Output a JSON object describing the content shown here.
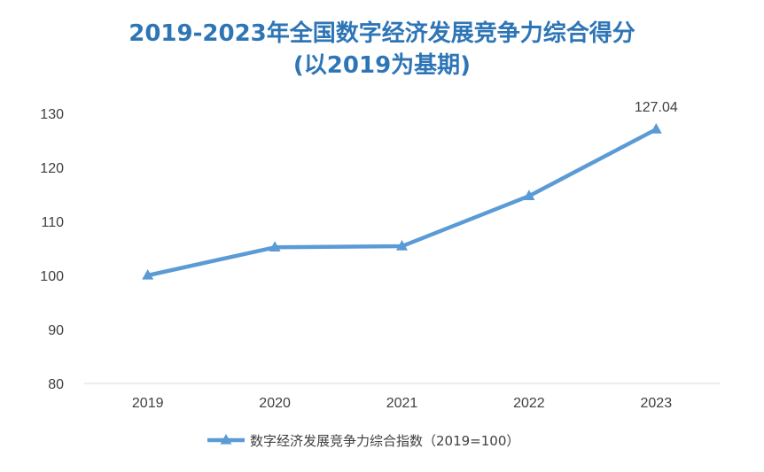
{
  "chart_data": {
    "type": "line",
    "title": "2019-2023年全国数字经济发展竞争力综合得分",
    "subtitle": "(以2019为基期)",
    "categories": [
      "2019",
      "2020",
      "2021",
      "2022",
      "2023"
    ],
    "series": [
      {
        "name": "数字经济发展竞争力综合指数（2019=100）",
        "values": [
          100,
          105.2,
          105.4,
          114.7,
          127.04
        ],
        "color": "#5b9bd5",
        "marker": "triangle"
      }
    ],
    "data_labels": [
      {
        "category": "2023",
        "text": "127.04"
      }
    ],
    "yticks": [
      "80",
      "90",
      "100",
      "110",
      "120",
      "130"
    ],
    "ylim": [
      80,
      130
    ],
    "xlabel": "",
    "ylabel": "",
    "grid": false,
    "legend_position": "bottom",
    "title_color": "#2e75b6"
  }
}
